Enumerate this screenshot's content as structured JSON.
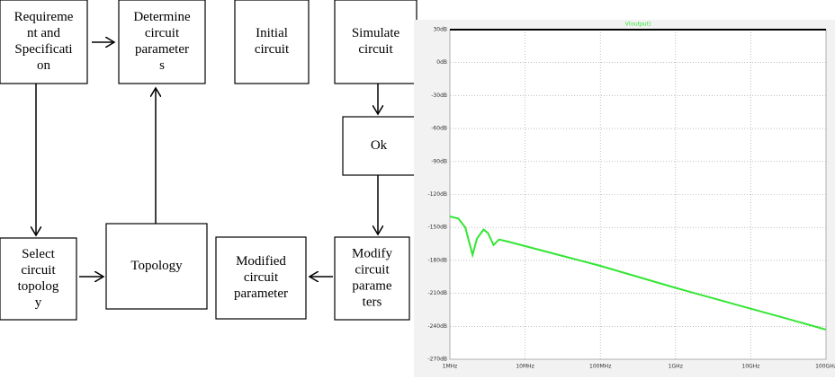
{
  "diagram": {
    "nodes": [
      {
        "lines": [
          "Requireme",
          "nt and",
          "Specificati",
          "on"
        ]
      },
      {
        "lines": [
          "Determine",
          "circuit",
          "parameter",
          "s"
        ]
      },
      {
        "lines": [
          "Initial",
          "circuit"
        ]
      },
      {
        "lines": [
          "Simulate",
          "circuit"
        ]
      },
      {
        "lines": [
          "Ok"
        ]
      },
      {
        "lines": [
          "Select",
          "circuit",
          "topolog",
          "y"
        ]
      },
      {
        "lines": [
          "Topology"
        ]
      },
      {
        "lines": [
          "Modified",
          "circuit",
          "parameter"
        ]
      },
      {
        "lines": [
          "Modify",
          "circuit",
          "parame",
          "ters"
        ]
      }
    ]
  },
  "chart_data": {
    "type": "line",
    "log_x": true,
    "grid": true,
    "x": [
      1000000,
      1300000,
      1600000,
      2000000,
      2300000,
      2800000,
      3200000,
      3800000,
      4500000,
      6000000,
      10000000,
      100000000,
      1000000000,
      10000000000,
      30000000000,
      100000000000
    ],
    "series": [
      {
        "name": "V(output)",
        "color": "#33e633",
        "values": [
          -140,
          -142,
          -150,
          -175,
          -160,
          -152,
          -155,
          -166,
          -161,
          -163,
          -167,
          -185,
          -205,
          -224,
          -233,
          -243
        ]
      }
    ],
    "xlim": [
      1000000,
      100000000000
    ],
    "xticks": [
      {
        "value": 1000000,
        "label": "1MHz"
      },
      {
        "value": 10000000,
        "label": "10MHz"
      },
      {
        "value": 100000000,
        "label": "100MHz"
      },
      {
        "value": 1000000000,
        "label": "1GHz"
      },
      {
        "value": 10000000000,
        "label": "10GHz"
      },
      {
        "value": 100000000000,
        "label": "100GHz"
      }
    ],
    "ylim": [
      -270,
      30
    ],
    "yticks": [
      {
        "value": 30,
        "label": "30dB"
      },
      {
        "value": 0,
        "label": "0dB"
      },
      {
        "value": -30,
        "label": "-30dB"
      },
      {
        "value": -60,
        "label": "-60dB"
      },
      {
        "value": -90,
        "label": "-90dB"
      },
      {
        "value": -120,
        "label": "-120dB"
      },
      {
        "value": -150,
        "label": "-150dB"
      },
      {
        "value": -180,
        "label": "-180dB"
      },
      {
        "value": -210,
        "label": "-210dB"
      },
      {
        "value": -240,
        "label": "-240dB"
      },
      {
        "value": -270,
        "label": "-270dB"
      }
    ]
  }
}
